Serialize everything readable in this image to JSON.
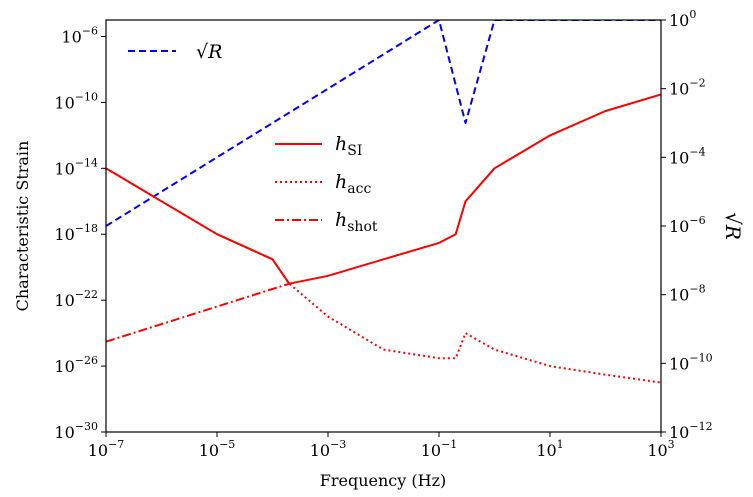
{
  "chart_data": {
    "type": "line",
    "xlabel": "Frequency (Hz)",
    "ylabel_left": "Characteristic Strain",
    "ylabel_right": "√R",
    "x_scale": "log",
    "y_scale_left": "log",
    "y_scale_right": "log",
    "xlim": [
      1e-07,
      1000.0
    ],
    "ylim_left": [
      1e-30,
      1e-05
    ],
    "ylim_right": [
      1e-12,
      1.0
    ],
    "x_ticks": [
      {
        "base": "10",
        "exp": "−7",
        "value": 1e-07
      },
      {
        "base": "10",
        "exp": "−5",
        "value": 1e-05
      },
      {
        "base": "10",
        "exp": "−3",
        "value": 0.001
      },
      {
        "base": "10",
        "exp": "−1",
        "value": 0.1
      },
      {
        "base": "10",
        "exp": "1",
        "value": 10
      },
      {
        "base": "10",
        "exp": "3",
        "value": 1000
      }
    ],
    "y_ticks_left": [
      {
        "base": "10",
        "exp": "−6",
        "value": 1e-06
      },
      {
        "base": "10",
        "exp": "−10",
        "value": 1e-10
      },
      {
        "base": "10",
        "exp": "−14",
        "value": 1e-14
      },
      {
        "base": "10",
        "exp": "−18",
        "value": 1e-18
      },
      {
        "base": "10",
        "exp": "−22",
        "value": 1e-22
      },
      {
        "base": "10",
        "exp": "−26",
        "value": 1e-26
      },
      {
        "base": "10",
        "exp": "−30",
        "value": 1e-30
      }
    ],
    "y_ticks_right": [
      {
        "base": "10",
        "exp": "0",
        "value": 1
      },
      {
        "base": "10",
        "exp": "−2",
        "value": 0.01
      },
      {
        "base": "10",
        "exp": "−4",
        "value": 0.0001
      },
      {
        "base": "10",
        "exp": "−6",
        "value": 1e-06
      },
      {
        "base": "10",
        "exp": "−8",
        "value": 1e-08
      },
      {
        "base": "10",
        "exp": "−10",
        "value": 1e-10
      },
      {
        "base": "10",
        "exp": "−12",
        "value": 1e-12
      }
    ],
    "legend_right_axis": {
      "placement": "top-left",
      "entries": [
        {
          "label": "√R",
          "color": "#0000ff",
          "style": "dashed"
        }
      ]
    },
    "legend_left_axis": {
      "placement": "center",
      "entries": [
        {
          "label": "h",
          "sub": "SI",
          "color": "#ff0000",
          "style": "solid"
        },
        {
          "label": "h",
          "sub": "acc",
          "color": "#ff0000",
          "style": "dotted"
        },
        {
          "label": "h",
          "sub": "shot",
          "color": "#ff0000",
          "style": "dashdot"
        }
      ]
    },
    "series": [
      {
        "name": "√R",
        "axis": "right",
        "color": "#0000ff",
        "style": "dashed",
        "x": [
          1e-07,
          1e-05,
          0.001,
          0.1,
          0.3,
          1,
          10,
          100,
          1000
        ],
        "y": [
          1e-06,
          0.0001,
          0.01,
          1,
          0.001,
          1,
          1,
          1,
          1
        ]
      },
      {
        "name": "h_SI",
        "axis": "left",
        "color": "#ff0000",
        "style": "solid",
        "x": [
          1e-07,
          1e-06,
          1e-05,
          0.0001,
          0.0002,
          0.001,
          0.01,
          0.1,
          0.2,
          0.3,
          1,
          10,
          100,
          1000
        ],
        "y": [
          1e-14,
          1e-16,
          1e-18,
          3e-20,
          1e-21,
          3e-21,
          3e-20,
          3e-19,
          1e-18,
          1e-16,
          1e-14,
          1e-12,
          3e-11,
          3e-10
        ]
      },
      {
        "name": "h_acc",
        "axis": "left",
        "color": "#ff0000",
        "style": "dotted",
        "x": [
          1e-07,
          1e-06,
          1e-05,
          0.0001,
          0.0002,
          0.001,
          0.01,
          0.1,
          0.2,
          0.3,
          1,
          10,
          100,
          1000
        ],
        "y": [
          1e-14,
          1e-16,
          1e-18,
          3e-20,
          1e-21,
          1e-23,
          1e-25,
          3e-26,
          3e-26,
          1e-24,
          1e-25,
          1e-26,
          3e-27,
          1e-27
        ]
      },
      {
        "name": "h_shot",
        "axis": "left",
        "color": "#ff0000",
        "style": "dashdot",
        "x": [
          1e-07,
          0.0002
        ],
        "y": [
          3e-25,
          1e-21
        ]
      }
    ]
  }
}
